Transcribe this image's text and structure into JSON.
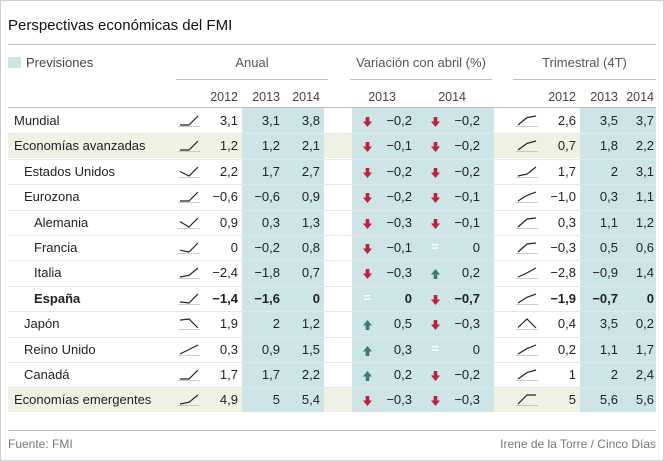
{
  "title": "Perspectivas económicas del FMI",
  "legend": {
    "label": "Previsiones",
    "color": "#cde5e7"
  },
  "colors": {
    "down": "#c41e3a",
    "up": "#3e7b78",
    "highlight": "#eef2e3",
    "forecast": "#cde5e7"
  },
  "groups": {
    "annual": "Anual",
    "change": "Variación con abril (%)",
    "quarterly": "Trimestral (4T)"
  },
  "years": {
    "annual": [
      "2012",
      "2013",
      "2014"
    ],
    "change": [
      "2013",
      "2014"
    ],
    "quarterly": [
      "2012",
      "2013",
      "2014"
    ]
  },
  "source": "Fuente: FMI",
  "credit": "Irene de la Torre / Cinco Días",
  "chart_data": {
    "type": "table",
    "title": "Perspectivas económicas del FMI",
    "columns": [
      "Anual 2012",
      "Anual 2013",
      "Anual 2014",
      "Variación 2013",
      "Variación 2014",
      "Trimestral 2012",
      "Trimestral 2013",
      "Trimestral 2014"
    ],
    "rows": [
      {
        "name": "Mundial",
        "indent": 0,
        "bold": false,
        "highlight": false,
        "annual": [
          "3,1",
          "3,1",
          "3,8"
        ],
        "annual_values": [
          3.1,
          3.1,
          3.8
        ],
        "change": [
          "−0,2",
          "−0,2"
        ],
        "change_values": [
          -0.2,
          -0.2
        ],
        "change_dir": [
          "down",
          "down"
        ],
        "quarterly": [
          "2,6",
          "3,5",
          "3,7"
        ],
        "quarterly_values": [
          2.6,
          3.5,
          3.7
        ]
      },
      {
        "name": "Economías avanzadas",
        "indent": 0,
        "bold": false,
        "highlight": true,
        "annual": [
          "1,2",
          "1,2",
          "2,1"
        ],
        "annual_values": [
          1.2,
          1.2,
          2.1
        ],
        "change": [
          "−0,1",
          "−0,2"
        ],
        "change_values": [
          -0.1,
          -0.2
        ],
        "change_dir": [
          "down",
          "down"
        ],
        "quarterly": [
          "0,7",
          "1,8",
          "2,2"
        ],
        "quarterly_values": [
          0.7,
          1.8,
          2.2
        ]
      },
      {
        "name": "Estados Unidos",
        "indent": 1,
        "bold": false,
        "highlight": false,
        "annual": [
          "2,2",
          "1,7",
          "2,7"
        ],
        "annual_values": [
          2.2,
          1.7,
          2.7
        ],
        "change": [
          "−0,2",
          "−0,2"
        ],
        "change_values": [
          -0.2,
          -0.2
        ],
        "change_dir": [
          "down",
          "down"
        ],
        "quarterly": [
          "1,7",
          "2",
          "3,1"
        ],
        "quarterly_values": [
          1.7,
          2.0,
          3.1
        ]
      },
      {
        "name": "Eurozona",
        "indent": 1,
        "bold": false,
        "highlight": false,
        "annual": [
          "−0,6",
          "−0,6",
          "0,9"
        ],
        "annual_values": [
          -0.6,
          -0.6,
          0.9
        ],
        "change": [
          "−0,2",
          "−0,1"
        ],
        "change_values": [
          -0.2,
          -0.1
        ],
        "change_dir": [
          "down",
          "down"
        ],
        "quarterly": [
          "−1,0",
          "0,3",
          "1,1"
        ],
        "quarterly_values": [
          -1.0,
          0.3,
          1.1
        ]
      },
      {
        "name": "Alemania",
        "indent": 2,
        "bold": false,
        "highlight": false,
        "annual": [
          "0,9",
          "0,3",
          "1,3"
        ],
        "annual_values": [
          0.9,
          0.3,
          1.3
        ],
        "change": [
          "−0,3",
          "−0,1"
        ],
        "change_values": [
          -0.3,
          -0.1
        ],
        "change_dir": [
          "down",
          "down"
        ],
        "quarterly": [
          "0,3",
          "1,1",
          "1,2"
        ],
        "quarterly_values": [
          0.3,
          1.1,
          1.2
        ]
      },
      {
        "name": "Francia",
        "indent": 2,
        "bold": false,
        "highlight": false,
        "annual": [
          "0",
          "−0,2",
          "0,8"
        ],
        "annual_values": [
          0.0,
          -0.2,
          0.8
        ],
        "change": [
          "−0,1",
          "0"
        ],
        "change_values": [
          -0.1,
          0.0
        ],
        "change_dir": [
          "down",
          "equal"
        ],
        "quarterly": [
          "−0,3",
          "0,5",
          "0,6"
        ],
        "quarterly_values": [
          -0.3,
          0.5,
          0.6
        ]
      },
      {
        "name": "Italia",
        "indent": 2,
        "bold": false,
        "highlight": false,
        "annual": [
          "−2,4",
          "−1,8",
          "0,7"
        ],
        "annual_values": [
          -2.4,
          -1.8,
          0.7
        ],
        "change": [
          "−0,3",
          "0,2"
        ],
        "change_values": [
          -0.3,
          0.2
        ],
        "change_dir": [
          "down",
          "up"
        ],
        "quarterly": [
          "−2,8",
          "−0,9",
          "1,4"
        ],
        "quarterly_values": [
          -2.8,
          -0.9,
          1.4
        ]
      },
      {
        "name": "España",
        "indent": 2,
        "bold": true,
        "highlight": false,
        "annual": [
          "−1,4",
          "−1,6",
          "0"
        ],
        "annual_values": [
          -1.4,
          -1.6,
          0.0
        ],
        "change": [
          "0",
          "−0,7"
        ],
        "change_values": [
          0.0,
          -0.7
        ],
        "change_dir": [
          "equal",
          "down"
        ],
        "quarterly": [
          "−1,9",
          "−0,7",
          "0"
        ],
        "quarterly_values": [
          -1.9,
          -0.7,
          0.0
        ]
      },
      {
        "name": "Japón",
        "indent": 1,
        "bold": false,
        "highlight": false,
        "annual": [
          "1,9",
          "2",
          "1,2"
        ],
        "annual_values": [
          1.9,
          2.0,
          1.2
        ],
        "change": [
          "0,5",
          "−0,3"
        ],
        "change_values": [
          0.5,
          -0.3
        ],
        "change_dir": [
          "up",
          "down"
        ],
        "quarterly": [
          "0,4",
          "3,5",
          "0,2"
        ],
        "quarterly_values": [
          0.4,
          3.5,
          0.2
        ]
      },
      {
        "name": "Reino Unido",
        "indent": 1,
        "bold": false,
        "highlight": false,
        "annual": [
          "0,3",
          "0,9",
          "1,5"
        ],
        "annual_values": [
          0.3,
          0.9,
          1.5
        ],
        "change": [
          "0,3",
          "0"
        ],
        "change_values": [
          0.3,
          0.0
        ],
        "change_dir": [
          "up",
          "equal"
        ],
        "quarterly": [
          "0,2",
          "1,1",
          "1,7"
        ],
        "quarterly_values": [
          0.2,
          1.1,
          1.7
        ]
      },
      {
        "name": "Canadá",
        "indent": 1,
        "bold": false,
        "highlight": false,
        "annual": [
          "1,7",
          "1,7",
          "2,2"
        ],
        "annual_values": [
          1.7,
          1.7,
          2.2
        ],
        "change": [
          "0,2",
          "−0,2"
        ],
        "change_values": [
          0.2,
          -0.2
        ],
        "change_dir": [
          "up",
          "down"
        ],
        "quarterly": [
          "1",
          "2",
          "2,4"
        ],
        "quarterly_values": [
          1.0,
          2.0,
          2.4
        ]
      },
      {
        "name": "Economías emergentes",
        "indent": 0,
        "bold": false,
        "highlight": true,
        "annual": [
          "4,9",
          "5",
          "5,4"
        ],
        "annual_values": [
          4.9,
          5.0,
          5.4
        ],
        "change": [
          "−0,3",
          "−0,3"
        ],
        "change_values": [
          -0.3,
          -0.3
        ],
        "change_dir": [
          "down",
          "down"
        ],
        "quarterly": [
          "5",
          "5,6",
          "5,6"
        ],
        "quarterly_values": [
          5.0,
          5.6,
          5.6
        ]
      }
    ]
  }
}
